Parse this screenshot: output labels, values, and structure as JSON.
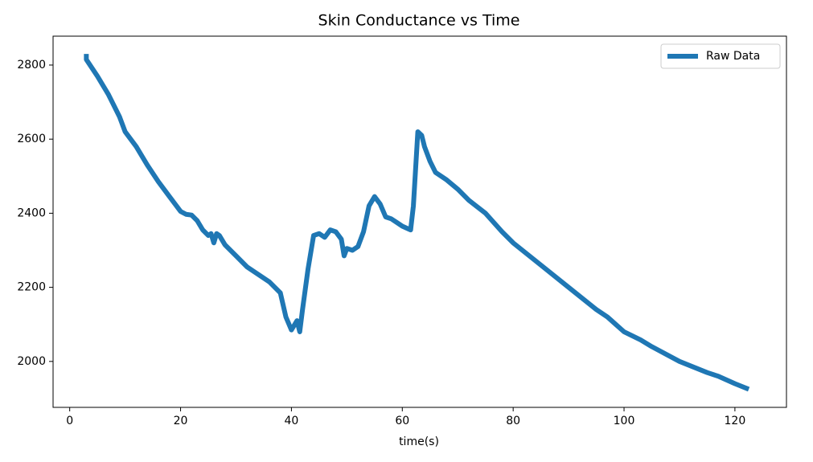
{
  "chart_data": {
    "type": "line",
    "title": "Skin Conductance vs Time",
    "x_label": "time(s)",
    "x": [
      3,
      3,
      5,
      7,
      9,
      10,
      12,
      14,
      16,
      18,
      20,
      21,
      22,
      23,
      24,
      25,
      25.5,
      26,
      26.5,
      27,
      28,
      30,
      32,
      34,
      36,
      38,
      39,
      40,
      41,
      41.5,
      42,
      43,
      44,
      45,
      46,
      47,
      48,
      49,
      49.5,
      50,
      51,
      52,
      53,
      54,
      55,
      56,
      57,
      58,
      59,
      60,
      61.5,
      62,
      62.8,
      63.5,
      64,
      65,
      66,
      68,
      70,
      72,
      75,
      78,
      80,
      85,
      90,
      95,
      97,
      100,
      103,
      105,
      110,
      115,
      117,
      120,
      122.5
    ],
    "series": [
      {
        "name": "Raw Data",
        "color": "#1f77b4",
        "values": [
          2830,
          2815,
          2770,
          2720,
          2660,
          2620,
          2580,
          2530,
          2485,
          2445,
          2405,
          2397,
          2395,
          2380,
          2355,
          2340,
          2345,
          2320,
          2345,
          2340,
          2315,
          2285,
          2255,
          2235,
          2215,
          2185,
          2120,
          2085,
          2110,
          2080,
          2140,
          2250,
          2340,
          2345,
          2335,
          2355,
          2350,
          2330,
          2285,
          2305,
          2300,
          2310,
          2350,
          2420,
          2445,
          2425,
          2390,
          2385,
          2375,
          2365,
          2355,
          2420,
          2620,
          2610,
          2580,
          2540,
          2510,
          2490,
          2465,
          2435,
          2400,
          2350,
          2320,
          2260,
          2200,
          2140,
          2120,
          2080,
          2058,
          2040,
          2000,
          1970,
          1960,
          1940,
          1925
        ]
      }
    ],
    "xlim": [
      -3,
      129.3
    ],
    "ylim": [
      1876,
      2878
    ],
    "xticks": [
      0,
      20,
      40,
      60,
      80,
      100,
      120
    ],
    "yticks": [
      2000,
      2200,
      2400,
      2600,
      2800
    ],
    "legend": "upper right"
  }
}
